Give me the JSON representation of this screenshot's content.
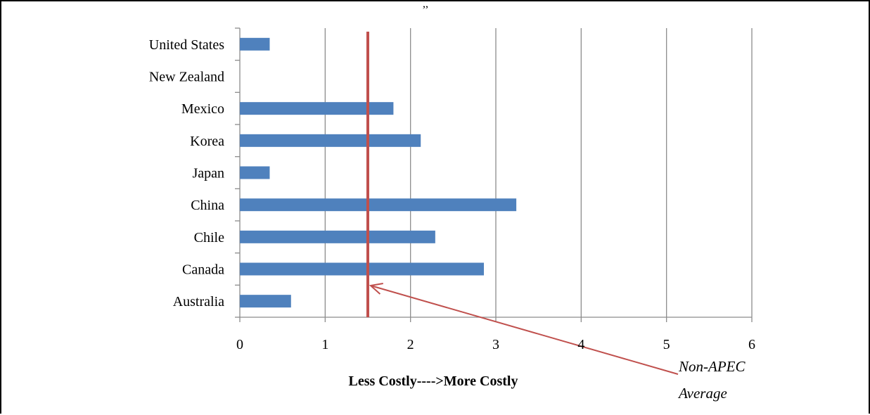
{
  "chart_data": {
    "type": "bar",
    "orientation": "horizontal",
    "categories": [
      "Australia",
      "Canada",
      "Chile",
      "China",
      "Japan",
      "Korea",
      "Mexico",
      "New Zealand",
      "United States"
    ],
    "series": [
      {
        "values": [
          0.6,
          2.86,
          2.29,
          3.24,
          0.35,
          2.12,
          1.8,
          0,
          0.35
        ]
      }
    ],
    "xlabel": "Less Costly---->More Costly",
    "ylabel": "",
    "xlim": [
      0,
      6
    ],
    "xticks": [
      0,
      1,
      2,
      3,
      4,
      5,
      6
    ],
    "grid": "vertical",
    "legend": "none",
    "reference_line": {
      "value": 1.5,
      "label": "Non-APEC Average",
      "label_lines": [
        "Non-APEC",
        "Average"
      ]
    },
    "top_mark": ",,",
    "colors": {
      "bar": "#4f81bd",
      "reference_line": "#c0504d",
      "grid": "#8c8c8c",
      "axis": "#8c8c8c"
    }
  }
}
